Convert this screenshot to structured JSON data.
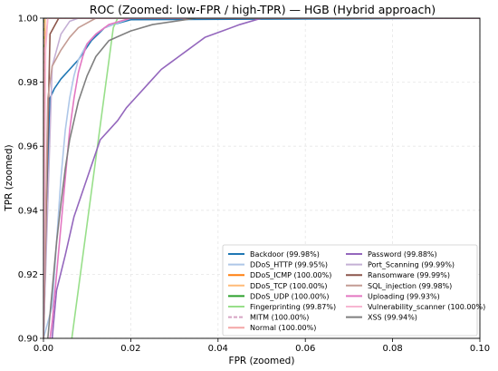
{
  "chart_data": {
    "type": "line",
    "title": "ROC (Zoomed: low-FPR / high-TPR) — HGB (Hybrid approach)",
    "xlabel": "FPR (zoomed)",
    "ylabel": "TPR (zoomed)",
    "xlim": [
      0.0,
      0.1
    ],
    "ylim": [
      0.9,
      1.0
    ],
    "x_ticks": [
      "0.00",
      "0.02",
      "0.04",
      "0.06",
      "0.08",
      "0.10"
    ],
    "y_ticks": [
      "0.90",
      "0.92",
      "0.94",
      "0.96",
      "0.98",
      "1.00"
    ],
    "grid": true,
    "legend_position": "lower-right",
    "series": [
      {
        "name": "Backdoor (99.98%)",
        "color": "#1f77b4",
        "dash": "",
        "x": [
          0,
          0.0015,
          0.0025,
          0.004,
          0.006,
          0.008,
          0.0095,
          0.011,
          0.0125,
          0.014,
          0.016,
          0.02,
          0.1
        ],
        "y": [
          0.9,
          0.975,
          0.978,
          0.981,
          0.984,
          0.987,
          0.99,
          0.993,
          0.995,
          0.997,
          0.998,
          0.9995,
          1.0
        ]
      },
      {
        "name": "DDoS_HTTP (99.95%)",
        "color": "#aec7e8",
        "dash": "",
        "x": [
          0,
          0.002,
          0.003,
          0.004,
          0.005,
          0.006,
          0.007,
          0.008,
          0.01,
          0.012,
          0.014,
          0.016,
          0.02,
          0.1
        ],
        "y": [
          0.9,
          0.91,
          0.93,
          0.95,
          0.965,
          0.975,
          0.982,
          0.987,
          0.992,
          0.995,
          0.997,
          0.998,
          1.0,
          1.0
        ]
      },
      {
        "name": "DDoS_ICMP (100.00%)",
        "color": "#ff7f0e",
        "dash": "",
        "x": [
          0,
          0,
          0.1
        ],
        "y": [
          0.9,
          1.0,
          1.0
        ]
      },
      {
        "name": "DDoS_TCP (100.00%)",
        "color": "#ffbb78",
        "dash": "",
        "x": [
          0,
          0.0002,
          0.0004,
          0.1
        ],
        "y": [
          0.9,
          0.975,
          1.0,
          1.0
        ]
      },
      {
        "name": "DDoS_UDP (100.00%)",
        "color": "#2ca02c",
        "dash": "",
        "x": [
          0,
          0,
          0.1
        ],
        "y": [
          0.9,
          1.0,
          1.0
        ]
      },
      {
        "name": "Fingerprinting (99.87%)",
        "color": "#98df8a",
        "dash": "",
        "x": [
          0.0065,
          0.016,
          0.017,
          0.1
        ],
        "y": [
          0.9,
          0.997,
          1.0,
          1.0
        ]
      },
      {
        "name": "MITM (100.00%)",
        "color": "#d6a4c4",
        "dash": "6,3",
        "x": [
          0,
          0,
          0.1
        ],
        "y": [
          0.9,
          1.0,
          1.0
        ]
      },
      {
        "name": "Normal (100.00%)",
        "color": "#f4a6a6",
        "dash": "",
        "x": [
          0,
          0.0003,
          0.001,
          0.1
        ],
        "y": [
          0.9,
          0.99,
          1.0,
          1.0
        ]
      },
      {
        "name": "Password (99.88%)",
        "color": "#9467bd",
        "dash": "",
        "x": [
          0.002,
          0.003,
          0.005,
          0.007,
          0.009,
          0.011,
          0.013,
          0.015,
          0.017,
          0.019,
          0.021,
          0.023,
          0.025,
          0.027,
          0.029,
          0.031,
          0.033,
          0.035,
          0.037,
          0.039,
          0.041,
          0.045,
          0.05,
          0.1
        ],
        "y": [
          0.9,
          0.915,
          0.926,
          0.938,
          0.946,
          0.954,
          0.962,
          0.965,
          0.968,
          0.972,
          0.975,
          0.978,
          0.981,
          0.984,
          0.986,
          0.988,
          0.99,
          0.992,
          0.994,
          0.995,
          0.996,
          0.998,
          1.0,
          1.0
        ]
      },
      {
        "name": "Port_Scanning (99.99%)",
        "color": "#c5b0d5",
        "dash": "",
        "x": [
          0,
          0.002,
          0.004,
          0.006,
          0.008,
          0.1
        ],
        "y": [
          0.9,
          0.985,
          0.995,
          0.999,
          1.0,
          1.0
        ]
      },
      {
        "name": "Ransomware (99.99%)",
        "color": "#8c564b",
        "dash": "",
        "x": [
          0,
          0.0015,
          0.0035,
          0.1
        ],
        "y": [
          0.9,
          0.995,
          1.0,
          1.0
        ]
      },
      {
        "name": "SQL_injection (99.98%)",
        "color": "#c49c94",
        "dash": "",
        "x": [
          0,
          0.001,
          0.002,
          0.004,
          0.006,
          0.008,
          0.012,
          0.1
        ],
        "y": [
          0.9,
          0.975,
          0.985,
          0.99,
          0.994,
          0.997,
          1.0,
          1.0
        ]
      },
      {
        "name": "Uploading (99.93%)",
        "color": "#e377c2",
        "dash": "",
        "x": [
          0.0015,
          0.002,
          0.003,
          0.004,
          0.005,
          0.006,
          0.007,
          0.008,
          0.009,
          0.01,
          0.012,
          0.015,
          0.02,
          0.1
        ],
        "y": [
          0.9,
          0.905,
          0.92,
          0.935,
          0.95,
          0.965,
          0.975,
          0.983,
          0.988,
          0.992,
          0.995,
          0.998,
          1.0,
          1.0
        ]
      },
      {
        "name": "Vulnerability_scanner (100.00%)",
        "color": "#f7b6d2",
        "dash": "",
        "x": [
          0,
          0.0005,
          0.001,
          0.1
        ],
        "y": [
          0.9,
          0.99,
          1.0,
          1.0
        ]
      },
      {
        "name": "XSS (99.94%)",
        "color": "#7f7f7f",
        "dash": "",
        "x": [
          0.001,
          0.002,
          0.003,
          0.004,
          0.005,
          0.006,
          0.007,
          0.008,
          0.009,
          0.01,
          0.012,
          0.015,
          0.02,
          0.025,
          0.035,
          0.1
        ],
        "y": [
          0.9,
          0.915,
          0.93,
          0.942,
          0.953,
          0.962,
          0.968,
          0.974,
          0.978,
          0.982,
          0.988,
          0.993,
          0.996,
          0.998,
          1.0,
          1.0
        ]
      }
    ]
  }
}
